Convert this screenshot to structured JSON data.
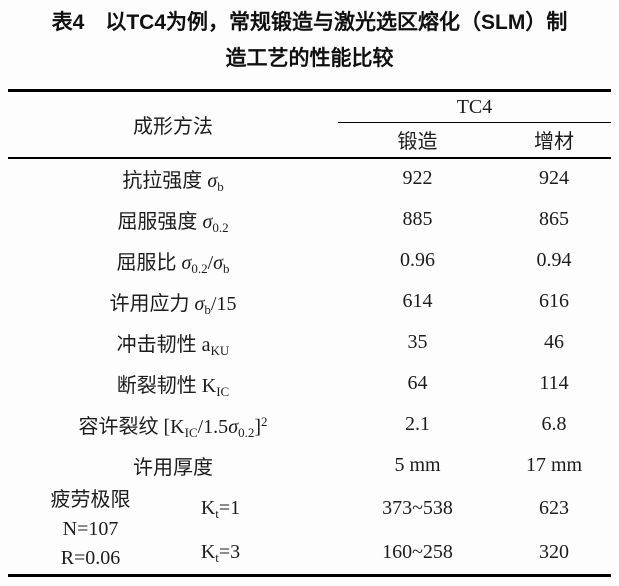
{
  "title": {
    "line1": "表4　以TC4为例，常规锻造与激光选区熔化（SLM）制",
    "line2": "造工艺的性能比较"
  },
  "table": {
    "header": {
      "method_label": "成形方法",
      "group_label": "TC4",
      "col_forging": "锻造",
      "col_additive": "增材"
    },
    "rows": [
      {
        "label": [
          {
            "t": "t",
            "v": "抗拉强度 "
          },
          {
            "t": "i",
            "v": "σ"
          },
          {
            "t": "sub",
            "v": "b"
          }
        ],
        "forging": "922",
        "additive": "924"
      },
      {
        "label": [
          {
            "t": "t",
            "v": "屈服强度 "
          },
          {
            "t": "i",
            "v": "σ"
          },
          {
            "t": "sub",
            "v": "0.2"
          }
        ],
        "forging": "885",
        "additive": "865"
      },
      {
        "label": [
          {
            "t": "t",
            "v": "屈服比 "
          },
          {
            "t": "i",
            "v": "σ"
          },
          {
            "t": "sub",
            "v": "0.2"
          },
          {
            "t": "t",
            "v": "/"
          },
          {
            "t": "i",
            "v": "σ"
          },
          {
            "t": "sub",
            "v": "b"
          }
        ],
        "forging": "0.96",
        "additive": "0.94"
      },
      {
        "label": [
          {
            "t": "t",
            "v": "许用应力 "
          },
          {
            "t": "i",
            "v": "σ"
          },
          {
            "t": "sub",
            "v": "b"
          },
          {
            "t": "t",
            "v": "/15"
          }
        ],
        "forging": "614",
        "additive": "616"
      },
      {
        "label": [
          {
            "t": "t",
            "v": "冲击韧性 a"
          },
          {
            "t": "sub",
            "v": "KU"
          }
        ],
        "forging": "35",
        "additive": "46"
      },
      {
        "label": [
          {
            "t": "t",
            "v": "断裂韧性 K"
          },
          {
            "t": "sub",
            "v": "IC"
          }
        ],
        "forging": "64",
        "additive": "114"
      },
      {
        "label": [
          {
            "t": "t",
            "v": "容许裂纹 [K"
          },
          {
            "t": "sub",
            "v": "IC"
          },
          {
            "t": "t",
            "v": "/1.5"
          },
          {
            "t": "i",
            "v": "σ"
          },
          {
            "t": "sub",
            "v": "0.2"
          },
          {
            "t": "t",
            "v": "]"
          },
          {
            "t": "sup",
            "v": "2"
          }
        ],
        "forging": "2.1",
        "additive": "6.8"
      },
      {
        "label": [
          {
            "t": "t",
            "v": "许用厚度"
          }
        ],
        "forging": "5 mm",
        "additive": "17 mm"
      }
    ],
    "fatigue": {
      "label_lines": [
        "疲劳极限",
        "N=107",
        "R=0.06"
      ],
      "sub_rows": [
        {
          "kt": [
            {
              "t": "t",
              "v": "K"
            },
            {
              "t": "sub",
              "v": "t"
            },
            {
              "t": "t",
              "v": "=1"
            }
          ],
          "forging": "373~538",
          "additive": "623"
        },
        {
          "kt": [
            {
              "t": "t",
              "v": "K"
            },
            {
              "t": "sub",
              "v": "t"
            },
            {
              "t": "t",
              "v": "=3"
            }
          ],
          "forging": "160~258",
          "additive": "320"
        }
      ]
    }
  },
  "colors": {
    "background": "#fdfdfd",
    "text": "#1c1c1c",
    "rule": "#000000"
  }
}
